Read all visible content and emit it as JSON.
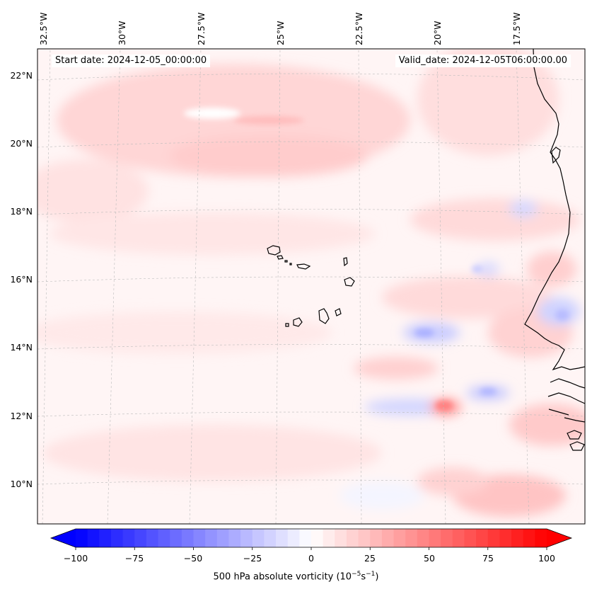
{
  "map": {
    "start_label": "Start date: 2024-12-05_00:00:00",
    "valid_label": "Valid_date: 2024-12-05T06:00:00.00",
    "lon_labels": [
      "32.5°W",
      "30°W",
      "27.5°W",
      "25°W",
      "22.5°W",
      "20°W",
      "17.5°W"
    ],
    "lat_labels": [
      "22°N",
      "20°N",
      "18°N",
      "16°N",
      "14°N",
      "12°N",
      "10°N"
    ],
    "field": "500 hPa absolute vorticity",
    "features": [
      "Cape Verde islands",
      "West African coastline"
    ]
  },
  "colorbar": {
    "ticks": [
      "−100",
      "−75",
      "−50",
      "−25",
      "0",
      "25",
      "50",
      "75",
      "100"
    ],
    "range": [
      -100,
      100
    ],
    "title_main": "500 hPa absolute vorticity (10",
    "title_exp1": "−5",
    "title_mid": "s",
    "title_exp2": "−1",
    "title_end": ")",
    "colors": {
      "low": "#0000ff",
      "mid": "#ffffff",
      "high": "#ff0000"
    }
  }
}
